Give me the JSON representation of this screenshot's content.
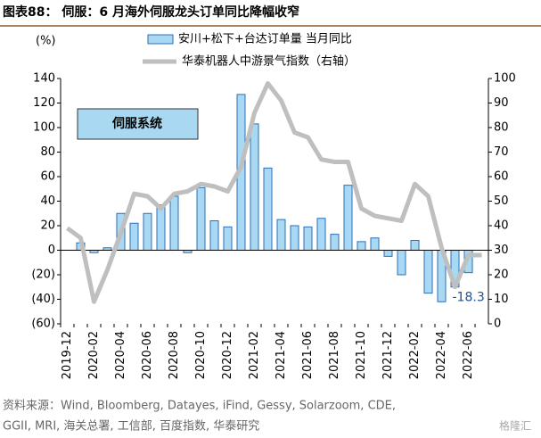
{
  "chart_data": {
    "type": "bar-line",
    "title": "图表88： 伺服：6 月海外伺服龙头订单同比降幅收窄",
    "y_axis_label": "(%)",
    "annotation": "伺服系统",
    "source": [
      "资料来源：Wind, Bloomberg, Datayes, iFind, Gessy, Solarzoom, CDE,",
      "GGII, MRI, 海关总署, 工信部, 百度指数, 华泰研究"
    ],
    "watermark": "格隆汇",
    "categories": [
      "2019-12",
      null,
      "2020-02",
      null,
      "2020-04",
      null,
      "2020-06",
      null,
      "2020-08",
      null,
      "2020-10",
      null,
      "2020-12",
      null,
      "2021-02",
      null,
      "2021-04",
      null,
      "2021-06",
      null,
      "2021-08",
      null,
      "2021-10",
      null,
      "2021-12",
      null,
      "2022-02",
      null,
      "2022-04",
      null,
      "2022-06",
      null
    ],
    "series": [
      {
        "name": "安川+松下+台达订单量 当月同比",
        "color": "#a9d9f2",
        "stroke": "#2e6fba",
        "values": [
          null,
          6,
          -2,
          2,
          30,
          22,
          30,
          37,
          44,
          -2,
          51,
          24,
          19,
          127,
          103,
          67,
          25,
          20,
          19,
          26,
          13,
          53,
          7,
          10,
          -5,
          -20,
          8,
          -35,
          -42,
          -30,
          -18.3,
          null
        ],
        "value_labels": [
          null,
          null,
          null,
          null,
          null,
          null,
          null,
          null,
          null,
          null,
          null,
          null,
          null,
          null,
          null,
          null,
          null,
          null,
          null,
          null,
          null,
          null,
          null,
          null,
          null,
          null,
          null,
          null,
          null,
          null,
          "-18.3",
          null
        ]
      },
      {
        "name": "华泰机器人中游景气指数（右轴）",
        "color": "#bfbfbf",
        "axis": "y2",
        "values": [
          39,
          35,
          9,
          22,
          37,
          53,
          52,
          47,
          53,
          54,
          57,
          56,
          54,
          64,
          86,
          98,
          91,
          78,
          76,
          67,
          66,
          66,
          47,
          44,
          43,
          42,
          57,
          52,
          31,
          15,
          28,
          28
        ]
      }
    ],
    "ylim": [
      -60,
      140
    ],
    "yticks": [
      {
        "value": -60,
        "label": "(60)"
      },
      {
        "value": -40,
        "label": "(40)"
      },
      {
        "value": -20,
        "label": "(20)"
      },
      0,
      20,
      40,
      60,
      80,
      100,
      120,
      140
    ],
    "y2lim": [
      0,
      100
    ],
    "y2ticks": [
      0,
      10,
      20,
      30,
      40,
      50,
      60,
      70,
      80,
      90,
      100
    ]
  }
}
